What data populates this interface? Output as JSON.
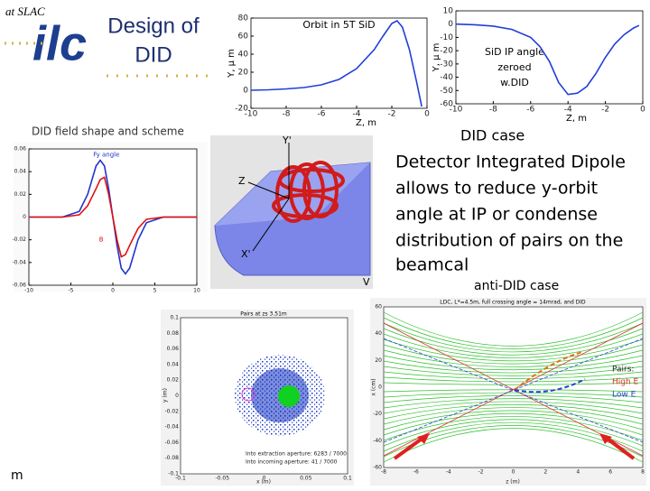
{
  "slide": {
    "affiliation": "at SLAC",
    "logo": "ilc",
    "title_lines": [
      "Design of",
      "DID"
    ],
    "field_caption": "DID field shape and scheme",
    "did_case": "DID case",
    "body_lines": [
      "Detector Integrated Dipole",
      "allows to reduce y-orbit",
      "angle at IP or condense",
      "distribution of pairs on the",
      "beamcal"
    ],
    "anti_did_case": "anti-DID case",
    "footer": "m",
    "scheme_labels": [
      "Y'",
      "Z",
      "X'",
      "V"
    ],
    "pairs_plot": {
      "title": "Pairs at zs 3.51m",
      "x_label": "x (m)",
      "y_label": "y (m)",
      "yticks": [
        "0.1",
        "0.08",
        "0.06",
        "0.04",
        "0.02",
        "0",
        "-0.02",
        "-0.04",
        "-0.06",
        "-0.08",
        "-0.1"
      ],
      "xticks": [
        "-0.1",
        "-0.05",
        "0",
        "0.05",
        "0.1"
      ],
      "notes": [
        "Into extraction aperture: 6283 / 7000",
        "Into incoming aperture: 41 / 7000"
      ]
    },
    "crossing_plot": {
      "title": "LDC, L*=4.5m, full crossing angle = 14mrad, and DID",
      "x_label": "z (m)",
      "y_label": "x (cm)",
      "yticks": [
        "60",
        "40",
        "20",
        "0",
        "-20",
        "-40",
        "-60"
      ],
      "xticks": [
        "-8",
        "-6",
        "-4",
        "-2",
        "0",
        "2",
        "4",
        "6",
        "8"
      ],
      "legend": [
        "Pairs:",
        "High E",
        "Low E"
      ]
    }
  },
  "chart_data": [
    {
      "type": "line",
      "title": "Orbit in 5T SiD",
      "x_label": "Z, m",
      "y_label": "Y, μ m",
      "x": [
        -10,
        -9,
        -8,
        -7,
        -6,
        -5,
        -4,
        -3,
        -2.5,
        -2,
        -1.7,
        -1.4,
        -1,
        -0.6,
        -0.3
      ],
      "series": [
        {
          "color": "#1f3fd8",
          "values": [
            0,
            0.5,
            1.5,
            3,
            6,
            12,
            24,
            45,
            60,
            74,
            77,
            70,
            45,
            10,
            -18
          ]
        }
      ],
      "xlim": [
        -10,
        0
      ],
      "ylim": [
        -20,
        80
      ],
      "xticks": [
        -10,
        -8,
        -6,
        -4,
        -2,
        0
      ],
      "yticks": [
        -20,
        0,
        20,
        40,
        60,
        80
      ]
    },
    {
      "type": "line",
      "annotation": "SiD IP angle zeroed w.DID",
      "x_label": "Z, m",
      "y_label": "Y, μ m",
      "x": [
        -10,
        -9,
        -8,
        -7,
        -6,
        -5.5,
        -5,
        -4.5,
        -4,
        -3.5,
        -3,
        -2.5,
        -2,
        -1.5,
        -1,
        -0.5,
        -0.2
      ],
      "series": [
        {
          "color": "#1f3fd8",
          "values": [
            0,
            -0.5,
            -1.5,
            -4,
            -10,
            -17,
            -28,
            -44,
            -53,
            -52,
            -47,
            -37,
            -25,
            -15,
            -8,
            -3,
            -1
          ]
        }
      ],
      "xlim": [
        -10,
        0
      ],
      "ylim": [
        -60,
        10
      ],
      "xticks": [
        -10,
        -8,
        -6,
        -4,
        -2,
        0
      ],
      "yticks": [
        -60,
        -50,
        -40,
        -30,
        -20,
        -10,
        0,
        10
      ]
    },
    {
      "type": "line",
      "x": [
        -10,
        -6,
        -4,
        -3,
        -2,
        -1.5,
        -1,
        -0.5,
        0,
        0.5,
        1,
        1.5,
        2,
        3,
        4,
        6,
        10
      ],
      "series": [
        {
          "name": "Fy angle",
          "color": "#2233cc",
          "values": [
            0,
            0,
            0.005,
            0.02,
            0.045,
            0.05,
            0.045,
            0.025,
            0,
            -0.025,
            -0.045,
            -0.05,
            -0.045,
            -0.02,
            -0.005,
            0,
            0
          ]
        },
        {
          "name": "B",
          "color": "#dd1111",
          "values": [
            0,
            0,
            0.002,
            0.01,
            0.025,
            0.033,
            0.035,
            0.02,
            0,
            -0.02,
            -0.035,
            -0.033,
            -0.025,
            -0.01,
            -0.002,
            0,
            0
          ]
        }
      ],
      "xlim": [
        -10,
        10
      ],
      "ylim": [
        -0.06,
        0.06
      ],
      "xticks": [
        -10,
        -5,
        0,
        5,
        10
      ],
      "yticks": [
        0.06,
        0.04,
        0.02,
        0,
        -0.02,
        -0.04,
        -0.06
      ]
    }
  ]
}
